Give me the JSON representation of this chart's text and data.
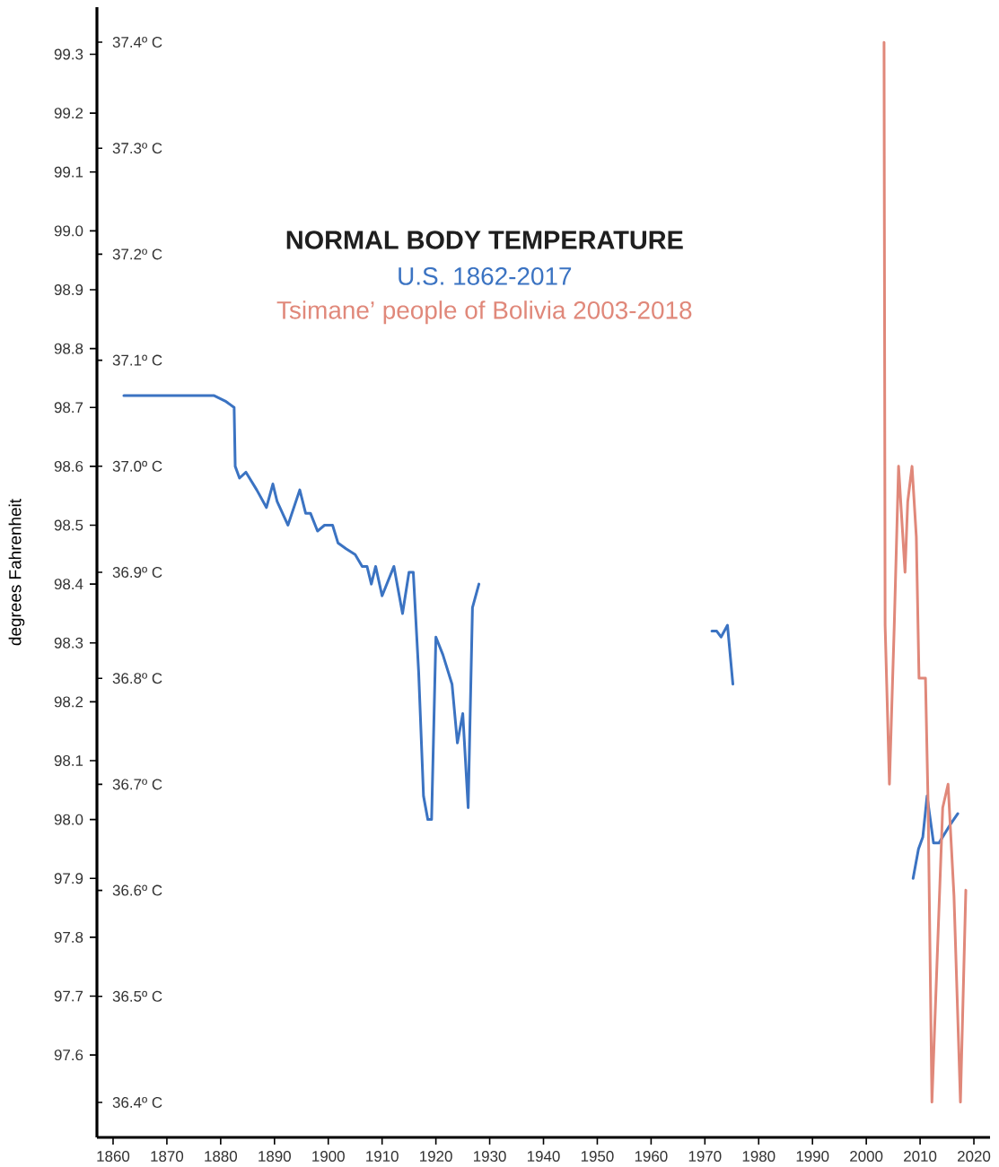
{
  "chart_data": {
    "type": "line",
    "title": "NORMAL BODY TEMPERATURE",
    "ylabel": "degrees Fahrenheit",
    "xlim": [
      1857,
      2023
    ],
    "xticks": [
      1860,
      1870,
      1880,
      1890,
      1900,
      1910,
      1920,
      1930,
      1940,
      1950,
      1960,
      1970,
      1980,
      1990,
      2000,
      2010,
      2020
    ],
    "ylim": [
      97.46,
      99.38
    ],
    "yticks": [
      97.6,
      97.7,
      97.8,
      97.9,
      {
        "value": 98.0,
        "label": "98.0"
      },
      98.1,
      98.2,
      98.3,
      98.4,
      98.5,
      98.6,
      98.7,
      98.8,
      98.9,
      {
        "value": 99.0,
        "label": "99.0"
      },
      99.1,
      99.2,
      99.3
    ],
    "y2lim": [
      36.367,
      37.433
    ],
    "y2ticks": [
      {
        "value": 36.4,
        "label": "36.4º C"
      },
      {
        "value": 36.5,
        "label": "36.5º C"
      },
      {
        "value": 36.6,
        "label": "36.6º C"
      },
      {
        "value": 36.7,
        "label": "36.7º C"
      },
      {
        "value": 36.8,
        "label": "36.8º C"
      },
      {
        "value": 36.9,
        "label": "36.9º C"
      },
      {
        "value": 37.0,
        "label": "37.0º C"
      },
      {
        "value": 37.1,
        "label": "37.1º C"
      },
      {
        "value": 37.2,
        "label": "37.2º C"
      },
      {
        "value": 37.3,
        "label": "37.3º C"
      },
      {
        "value": 37.4,
        "label": "37.4º C"
      }
    ],
    "series": [
      {
        "name": "U.S. 1862-2017",
        "color": "#3b73c2",
        "x": [
          1862,
          1868,
          1878.8,
          1881,
          1882.5,
          1882.7,
          1883.5,
          1884.7,
          1886.7,
          1888.5,
          1889.7,
          1890.5,
          1892.5,
          1894.7,
          1895.8,
          1896.7,
          1898,
          1899.3,
          1900.8,
          1901.8,
          1903.3,
          1905,
          1906.3,
          1907.2,
          1908,
          1908.8,
          1910,
          1912.2,
          1913.8,
          1915,
          1915.8,
          1916.8,
          1917.7,
          1918.5,
          1919.2,
          1920,
          1921.3,
          1923,
          1924,
          1925,
          1926,
          1926.8,
          1928,
          1950,
          1971.3,
          1972.2,
          1973,
          1974.2,
          1975.2,
          1990,
          2008.7,
          2009.7,
          2010.5,
          2011.3,
          2012.5,
          2013.5,
          2015.5,
          2017
        ],
        "values": [
          98.72,
          98.72,
          98.72,
          98.71,
          98.7,
          98.6,
          98.58,
          98.59,
          98.56,
          98.53,
          98.57,
          98.54,
          98.5,
          98.56,
          98.52,
          98.52,
          98.49,
          98.5,
          98.5,
          98.47,
          98.46,
          98.45,
          98.43,
          98.43,
          98.4,
          98.43,
          98.38,
          98.43,
          98.35,
          98.42,
          98.42,
          98.25,
          98.04,
          98.0,
          98.0,
          98.31,
          98.28,
          98.23,
          98.13,
          98.18,
          98.02,
          98.36,
          98.4,
          null,
          98.32,
          98.32,
          98.31,
          98.33,
          98.23,
          null,
          97.9,
          97.95,
          97.97,
          98.04,
          97.96,
          97.96,
          97.99,
          98.01
        ]
      },
      {
        "name": "Tsimane’ people of Bolivia 2003-2018",
        "color": "#e0887a",
        "x": [
          2003.3,
          2003.5,
          2004.3,
          2005.2,
          2006,
          2006.8,
          2007.2,
          2007.7,
          2008.5,
          2009.3,
          2009.8,
          2011,
          2011.5,
          2012.2,
          2013,
          2014.2,
          2015.2,
          2016.3,
          2017.5,
          2018.5
        ],
        "values": [
          99.32,
          98.33,
          98.06,
          98.33,
          98.6,
          98.48,
          98.42,
          98.54,
          98.6,
          98.48,
          98.24,
          98.24,
          98.02,
          97.52,
          97.72,
          98.02,
          98.06,
          97.87,
          97.52,
          97.88
        ]
      }
    ]
  }
}
